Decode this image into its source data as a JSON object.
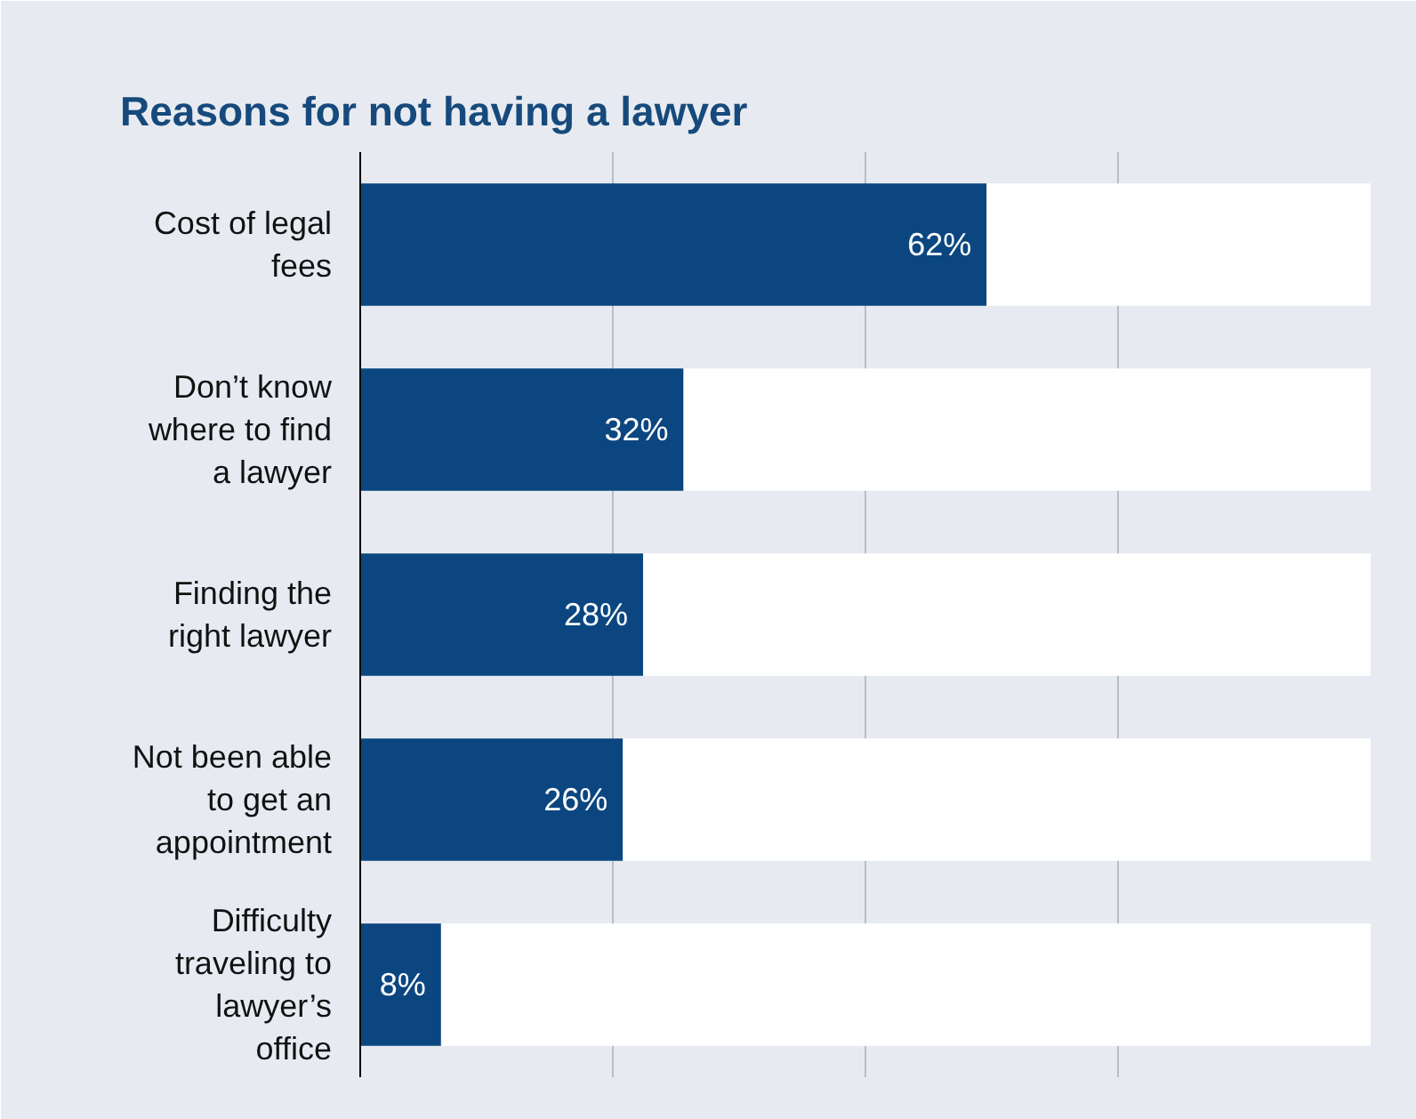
{
  "chart_data": {
    "type": "bar",
    "orientation": "horizontal",
    "stacked": true,
    "title": "Reasons for not having a lawyer",
    "categories": [
      "Cost of legal fees",
      "Don’t know where to find a lawyer",
      "Finding the right lawyer",
      "Not been able to get an appointment",
      "Difficulty traveling to lawyer’s office"
    ],
    "series": [
      {
        "color": "#0b4680",
        "values": [
          62,
          32,
          28,
          26,
          8
        ],
        "value_labels": [
          "62%",
          "32%",
          "28%",
          "26%",
          "8%"
        ]
      },
      {
        "color": "#ffffff",
        "values": [
          38,
          68,
          72,
          74,
          92
        ]
      }
    ],
    "xlim": [
      0,
      100
    ],
    "xticks": [
      {
        "value": 0,
        "label": null
      },
      {
        "value": 25,
        "label": null
      },
      {
        "value": 50,
        "label": null
      },
      {
        "value": 75,
        "label": null
      },
      {
        "value": 100,
        "label": null
      }
    ],
    "grid": "x",
    "tick_labels": "y"
  }
}
